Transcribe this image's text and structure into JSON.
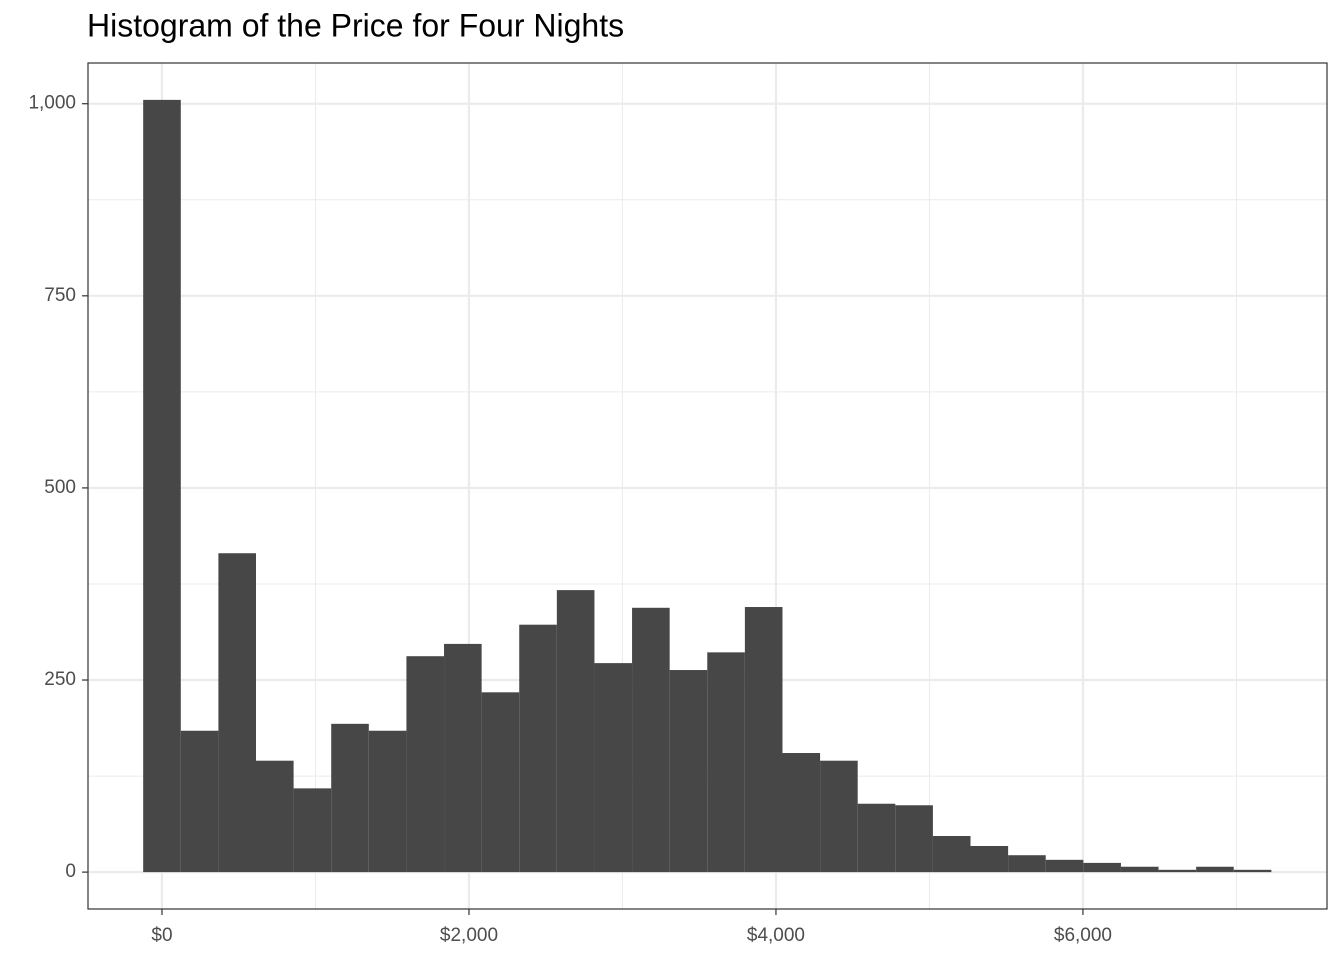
{
  "chart_data": {
    "type": "histogram",
    "title": "Histogram of the Price for Four Nights",
    "bins": [
      -122.5,
      122.5,
      367.5,
      612.5,
      857.5,
      1102.5,
      1347.5,
      1592.5,
      1837.5,
      2082.5,
      2327.5,
      2572.5,
      2817.5,
      3062.5,
      3307.5,
      3552.5,
      3797.5,
      4042.5,
      4287.5,
      4532.5,
      4777.5,
      5022.5,
      5267.5,
      5512.5,
      5757.5,
      6002.5,
      6247.5,
      6492.5,
      6737.5,
      6982.5,
      7227.5
    ],
    "values": [
      1005,
      184,
      415,
      145,
      109,
      193,
      184,
      281,
      297,
      234,
      322,
      367,
      272,
      344,
      263,
      286,
      345,
      155,
      145,
      89,
      87,
      47,
      34,
      22,
      16,
      12,
      7,
      3,
      7,
      3
    ],
    "color": "#474747",
    "xlim": [
      -482,
      7590
    ],
    "xticks": [
      {
        "value": 0,
        "label": "$0"
      },
      {
        "value": 2000,
        "label": "$2,000"
      },
      {
        "value": 4000,
        "label": "$4,000"
      },
      {
        "value": 6000,
        "label": "$6,000"
      }
    ],
    "x_minor_grid": [
      1000,
      3000,
      5000,
      7000
    ],
    "ylim": [
      -48,
      1053
    ],
    "yticks": [
      0,
      250,
      500,
      750,
      {
        "value": 1000,
        "label": "1,000"
      }
    ],
    "y_minor_grid": [
      125,
      375,
      625,
      875
    ],
    "grid": true
  }
}
